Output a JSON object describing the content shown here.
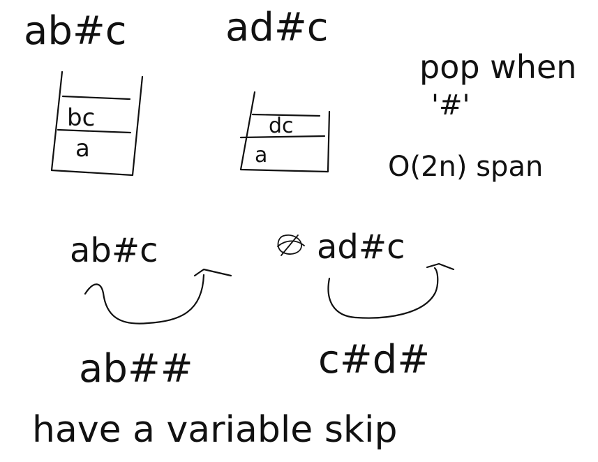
{
  "canvas": {
    "background": "#ffffff",
    "ink": "#111111"
  },
  "top": {
    "left_expr": "ab#c",
    "right_expr": "ad#c",
    "note_line1": "pop when",
    "note_line2": "'#'",
    "complexity": "O(2n) span"
  },
  "stacks": {
    "left": {
      "top_item": "bc",
      "bottom_item": "a"
    },
    "right": {
      "top_item": "dc",
      "bottom_item": "a"
    }
  },
  "middle": {
    "left_expr": "ab#c",
    "right_expr": "ad#c",
    "left_result": "ab##",
    "right_result": "c#d#"
  },
  "footer": {
    "caption": "have a variable skip"
  }
}
